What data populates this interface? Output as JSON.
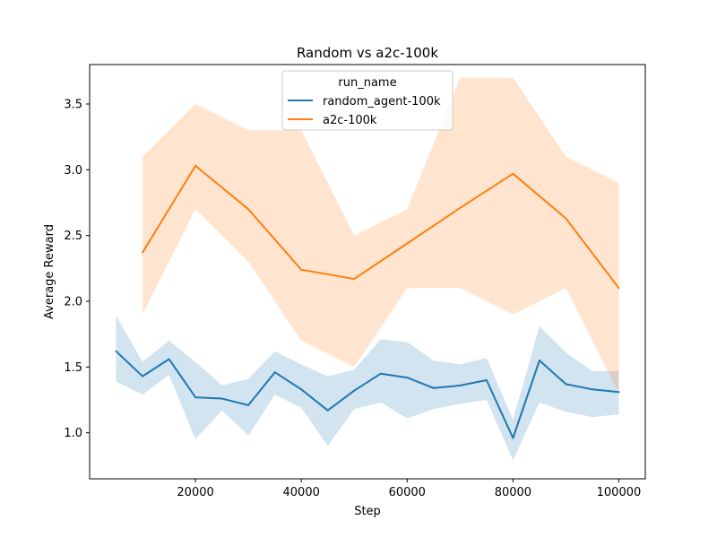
{
  "chart_data": {
    "type": "line",
    "title": "Random vs a2c-100k",
    "xlabel": "Step",
    "ylabel": "Average Reward",
    "xlim": [
      0,
      105000
    ],
    "ylim": [
      0.65,
      3.8
    ],
    "xticks": [
      20000,
      40000,
      60000,
      80000,
      100000
    ],
    "yticks": [
      1.0,
      1.5,
      2.0,
      2.5,
      3.0,
      3.5
    ],
    "grid": false,
    "legend": {
      "title": "run_name",
      "placement": "upper center"
    },
    "series": [
      {
        "name": "random_agent-100k",
        "color": "#1f77b4",
        "x": [
          5000,
          10000,
          15000,
          20000,
          25000,
          30000,
          35000,
          40000,
          45000,
          50000,
          55000,
          60000,
          65000,
          70000,
          75000,
          80000,
          85000,
          90000,
          95000,
          100000
        ],
        "y": [
          1.62,
          1.43,
          1.56,
          1.27,
          1.26,
          1.21,
          1.46,
          1.33,
          1.17,
          1.32,
          1.45,
          1.42,
          1.34,
          1.36,
          1.4,
          0.96,
          1.55,
          1.37,
          1.33,
          1.31
        ],
        "ci_lower": [
          1.39,
          1.29,
          1.44,
          0.95,
          1.17,
          0.98,
          1.29,
          1.19,
          0.9,
          1.18,
          1.23,
          1.11,
          1.18,
          1.22,
          1.25,
          0.79,
          1.23,
          1.16,
          1.12,
          1.14
        ],
        "ci_upper": [
          1.89,
          1.54,
          1.7,
          1.54,
          1.36,
          1.41,
          1.62,
          1.52,
          1.43,
          1.48,
          1.71,
          1.69,
          1.55,
          1.52,
          1.57,
          1.1,
          1.81,
          1.61,
          1.47,
          1.47
        ]
      },
      {
        "name": "a2c-100k",
        "color": "#ff7f0e",
        "x": [
          10000,
          20000,
          30000,
          40000,
          50000,
          60000,
          70000,
          80000,
          90000,
          100000
        ],
        "y": [
          2.37,
          3.03,
          2.7,
          2.24,
          2.17,
          2.44,
          2.71,
          2.97,
          2.63,
          2.1
        ],
        "ci_lower": [
          1.9,
          2.7,
          2.3,
          1.7,
          1.5,
          2.1,
          2.1,
          1.9,
          2.1,
          1.3
        ],
        "ci_upper": [
          3.1,
          3.5,
          3.3,
          3.3,
          2.5,
          2.7,
          3.7,
          3.7,
          3.1,
          2.9
        ]
      }
    ]
  }
}
